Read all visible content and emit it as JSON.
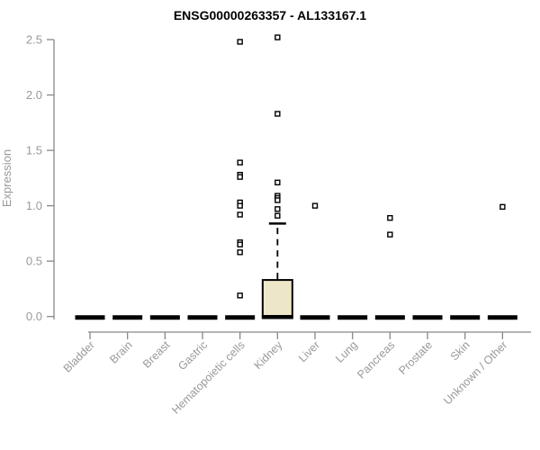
{
  "chart_data": {
    "type": "boxplot",
    "title": "ENSG00000263357 - AL133167.1",
    "ylabel": "Expression",
    "xlabel": "",
    "ylim": [
      0,
      2.55
    ],
    "grid": false,
    "legend": false,
    "ytick_values": [
      0,
      0.5,
      1.0,
      1.5,
      2.0,
      2.5
    ],
    "ytick_labels": [
      "0.0",
      "0.5",
      "1.0",
      "1.5",
      "2.0",
      "2.5"
    ],
    "categories": [
      "Bladder",
      "Brain",
      "Breast",
      "Gastric",
      "Hematopoietic cells",
      "Kidney",
      "Liver",
      "Lung",
      "Pancreas",
      "Prostate",
      "Skin",
      "Unknown / Other"
    ],
    "series": [
      {
        "category": "Bladder",
        "q1": 0,
        "median": 0,
        "q3": 0,
        "whisker_low": 0,
        "whisker_high": 0,
        "outliers": []
      },
      {
        "category": "Brain",
        "q1": 0,
        "median": 0,
        "q3": 0,
        "whisker_low": 0,
        "whisker_high": 0,
        "outliers": []
      },
      {
        "category": "Breast",
        "q1": 0,
        "median": 0,
        "q3": 0,
        "whisker_low": 0,
        "whisker_high": 0,
        "outliers": []
      },
      {
        "category": "Gastric",
        "q1": 0,
        "median": 0,
        "q3": 0,
        "whisker_low": 0,
        "whisker_high": 0,
        "outliers": []
      },
      {
        "category": "Hematopoietic cells",
        "q1": 0,
        "median": 0,
        "q3": 0,
        "whisker_low": 0,
        "whisker_high": 0,
        "outliers": [
          2.48,
          1.39,
          1.28,
          1.26,
          1.03,
          1.0,
          0.92,
          0.67,
          0.65,
          0.58,
          0.19
        ]
      },
      {
        "category": "Kidney",
        "q1": 0,
        "median": 0,
        "q3": 0.33,
        "whisker_low": 0,
        "whisker_high": 0.84,
        "outliers": [
          2.52,
          1.83,
          1.21,
          1.09,
          1.07,
          1.05,
          0.97,
          0.91
        ]
      },
      {
        "category": "Liver",
        "q1": 0,
        "median": 0,
        "q3": 0,
        "whisker_low": 0,
        "whisker_high": 0,
        "outliers": [
          1.0
        ]
      },
      {
        "category": "Lung",
        "q1": 0,
        "median": 0,
        "q3": 0,
        "whisker_low": 0,
        "whisker_high": 0,
        "outliers": []
      },
      {
        "category": "Pancreas",
        "q1": 0,
        "median": 0,
        "q3": 0,
        "whisker_low": 0,
        "whisker_high": 0,
        "outliers": [
          0.89,
          0.74
        ]
      },
      {
        "category": "Prostate",
        "q1": 0,
        "median": 0,
        "q3": 0,
        "whisker_low": 0,
        "whisker_high": 0,
        "outliers": []
      },
      {
        "category": "Skin",
        "q1": 0,
        "median": 0,
        "q3": 0,
        "whisker_low": 0,
        "whisker_high": 0,
        "outliers": []
      },
      {
        "category": "Unknown / Other",
        "q1": 0,
        "median": 0,
        "q3": 0,
        "whisker_low": 0,
        "whisker_high": 0,
        "outliers": [
          0.99
        ]
      }
    ],
    "colors": {
      "box_fill": "#EDE6C8",
      "box_stroke": "#000000",
      "median_color": "#000000",
      "outlier_stroke": "#000000",
      "outlier_fill": "#ffffff",
      "axis_line": "#888888",
      "tick_text": "#999999",
      "title_text": "#000000",
      "background": "#ffffff"
    }
  }
}
